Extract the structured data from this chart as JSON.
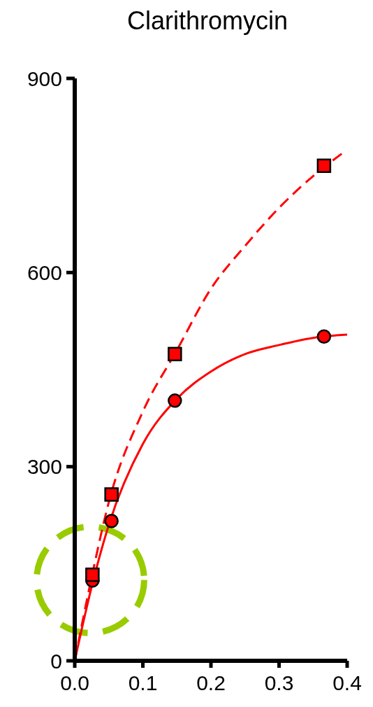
{
  "chart_data": {
    "type": "scatter",
    "title": "Clarithromycin",
    "xlim": [
      0,
      0.4
    ],
    "xticks": [
      {
        "value": 0,
        "label": "0.0"
      },
      {
        "value": 0.1,
        "label": "0.1"
      },
      {
        "value": 0.2,
        "label": "0.2"
      },
      {
        "value": 0.3,
        "label": "0.3"
      },
      {
        "value": 0.4,
        "label": "0.4"
      }
    ],
    "ylim": [
      0,
      900
    ],
    "yticks": [
      0,
      300,
      600,
      900
    ],
    "grid": false,
    "series": [
      {
        "type": "line",
        "color": "#ff0000",
        "line_style": "solid",
        "x": [
          0,
          0.025,
          0.05,
          0.1,
          0.15,
          0.2,
          0.25,
          0.3,
          0.35,
          0.4
        ],
        "values": [
          0,
          115,
          210,
          335,
          405,
          447,
          474,
          488,
          499,
          504
        ]
      },
      {
        "type": "line",
        "color": "#ff0000",
        "line_style": "dashed",
        "x": [
          0,
          0.025,
          0.05,
          0.1,
          0.15,
          0.2,
          0.25,
          0.3,
          0.35,
          0.395
        ],
        "values": [
          0,
          130,
          245,
          385,
          480,
          575,
          641,
          700,
          749,
          786
        ]
      },
      {
        "color": "#ff0000",
        "marker": "circle",
        "x": [
          0.026,
          0.054,
          0.147,
          0.366
        ],
        "values": [
          124,
          216,
          402,
          501
        ]
      },
      {
        "color": "#ff0000",
        "marker": "square",
        "x": [
          0.026,
          0.054,
          0.147,
          0.366
        ],
        "values": [
          133,
          257,
          474,
          765
        ]
      }
    ]
  }
}
